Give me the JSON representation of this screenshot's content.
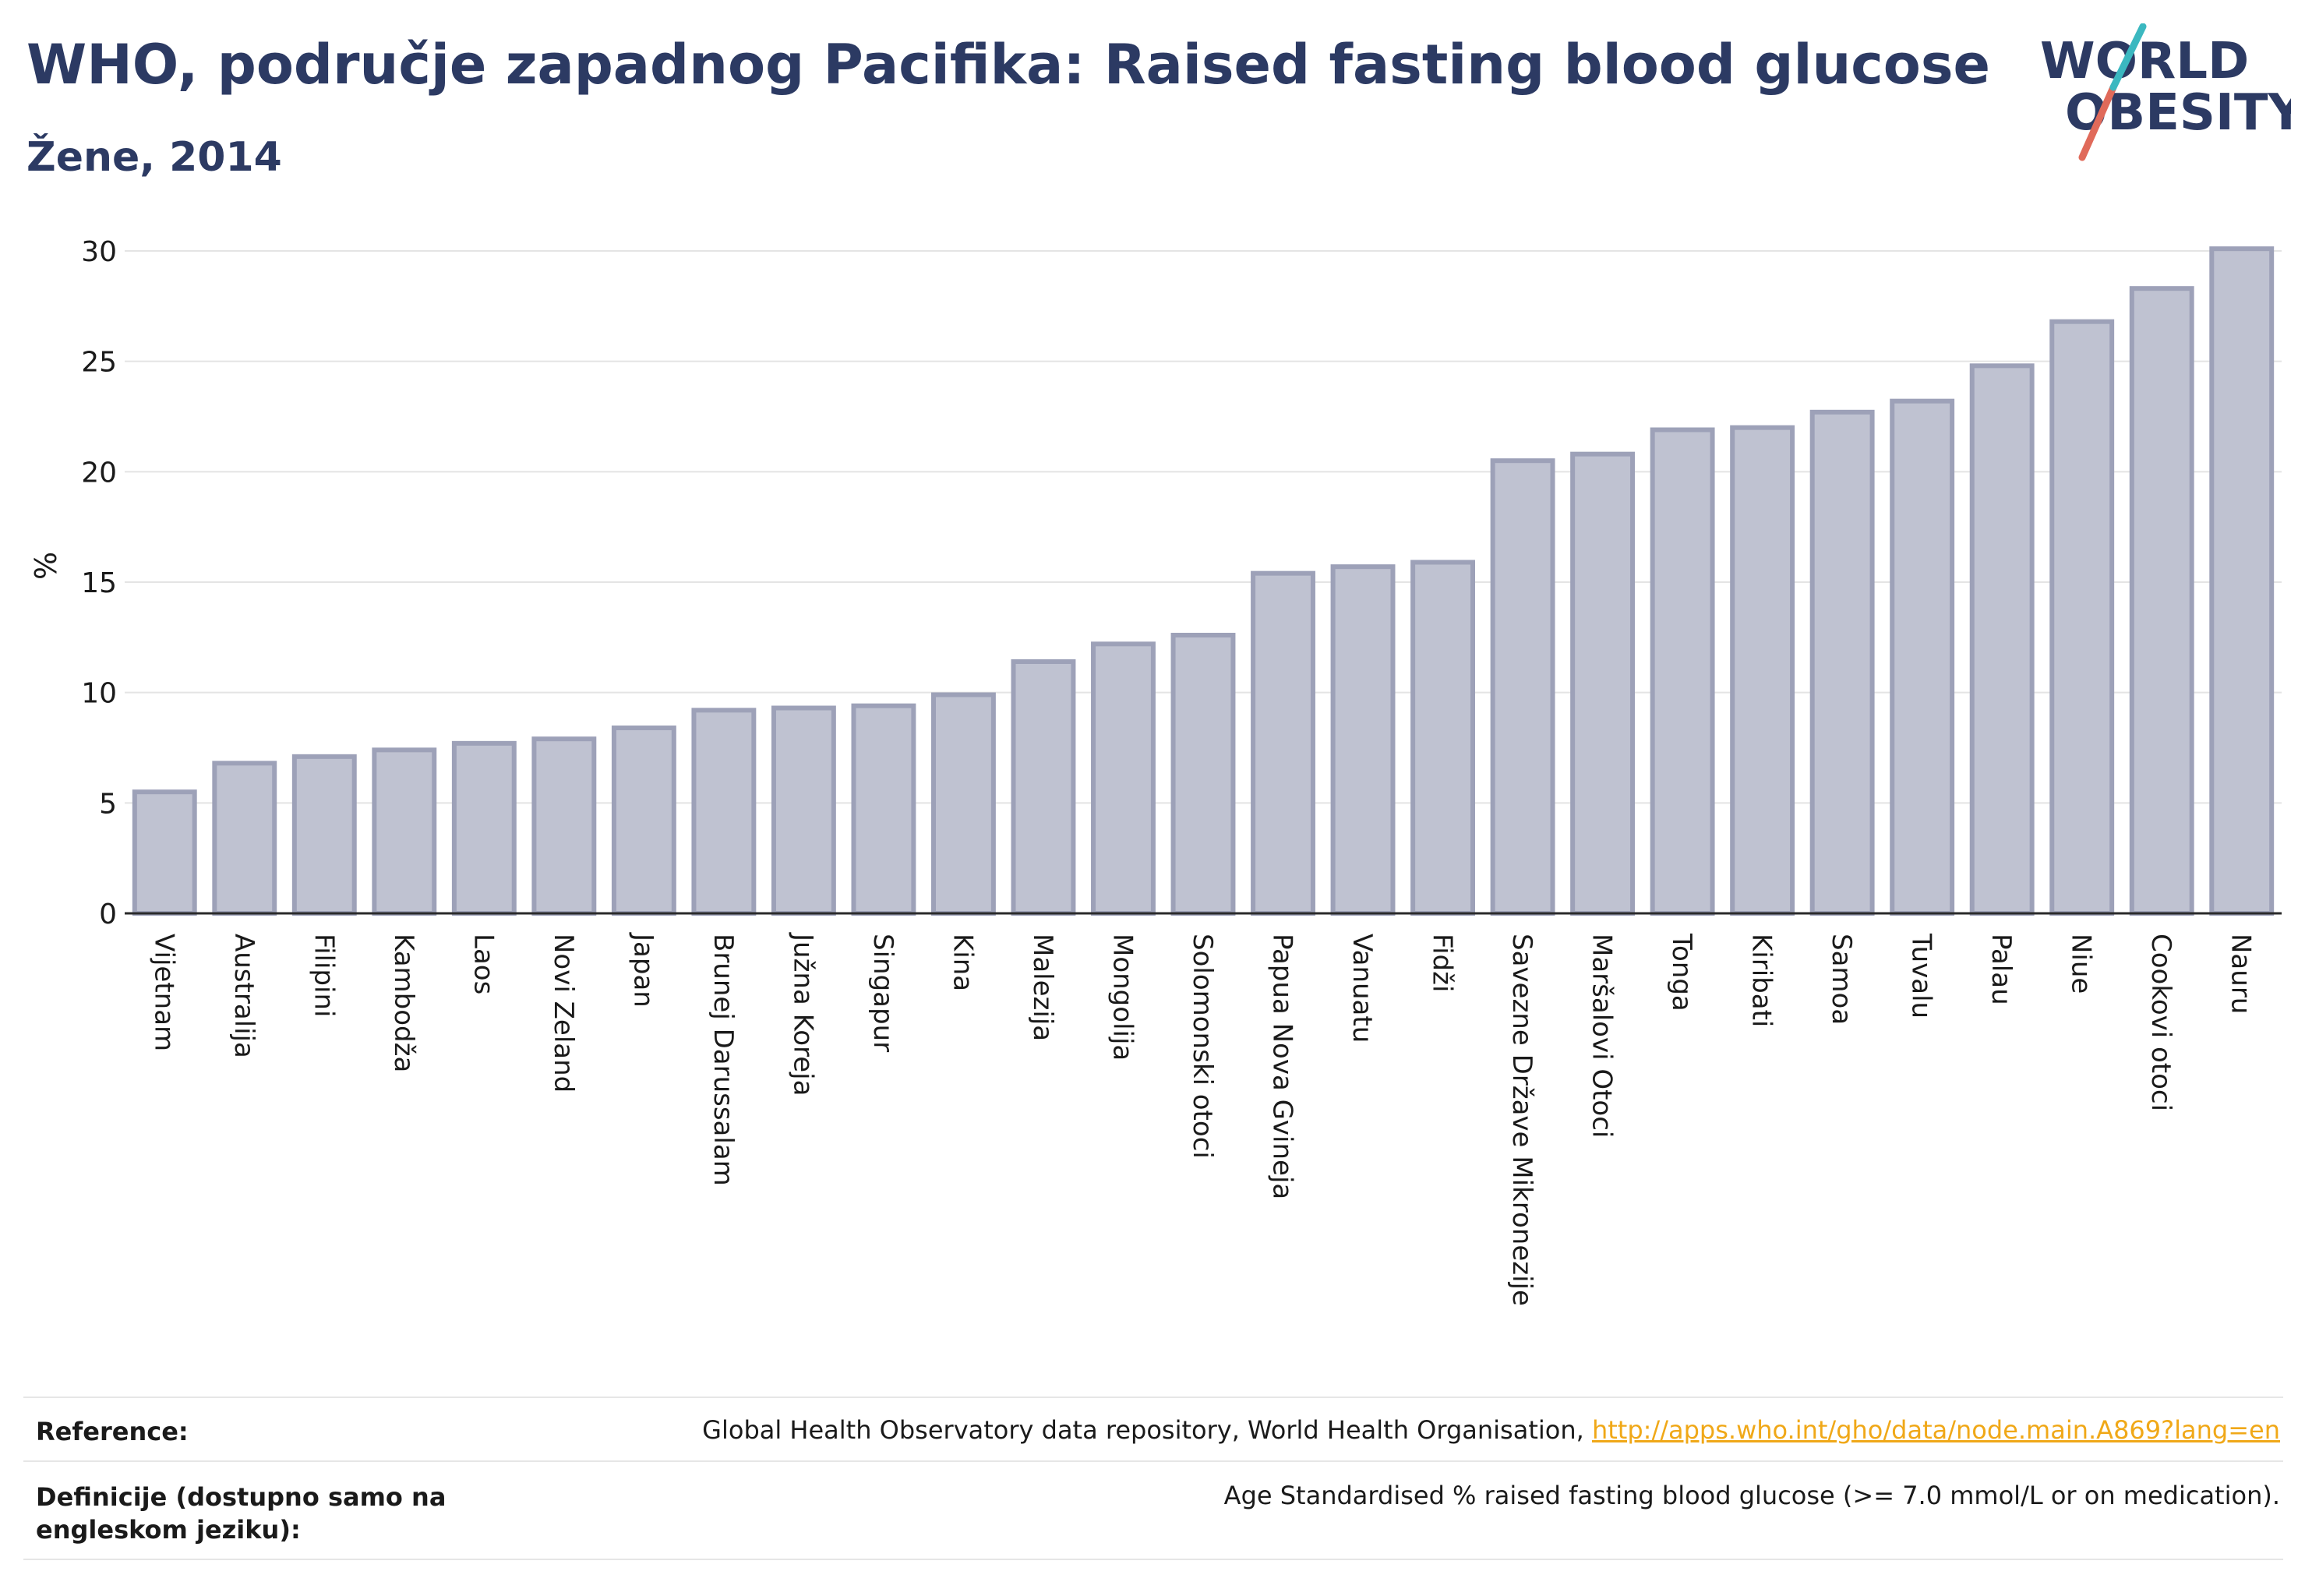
{
  "header": {
    "title": "WHO, područje zapadnog Pacifika: Raised fasting blood glucose",
    "subtitle": "Žene, 2014"
  },
  "logo": {
    "line1": "WORLD",
    "line2": "OBESITY"
  },
  "chart_data": {
    "type": "bar",
    "ylabel": "%",
    "ylim": [
      0,
      30
    ],
    "yticks": [
      0,
      5,
      10,
      15,
      20,
      25,
      30
    ],
    "grid": true,
    "bar_color": "#bfc2d1",
    "bar_border": "#9da1b8",
    "categories": [
      "Vijetnam",
      "Australija",
      "Filipini",
      "Kambodža",
      "Laos",
      "Novi Zeland",
      "Japan",
      "Brunej Darussalam",
      "Južna Koreja",
      "Singapur",
      "Kina",
      "Malezija",
      "Mongolija",
      "Solomonski otoci",
      "Papua Nova Gvineja",
      "Vanuatu",
      "Fidži",
      "Savezne Države Mikronezije",
      "Maršalovi Otoci",
      "Tonga",
      "Kiribati",
      "Samoa",
      "Tuvalu",
      "Palau",
      "Niue",
      "Cookovi otoci",
      "Nauru"
    ],
    "values": [
      5.5,
      6.8,
      7.1,
      7.4,
      7.7,
      7.9,
      8.4,
      9.2,
      9.3,
      9.4,
      9.9,
      11.4,
      12.2,
      12.6,
      15.4,
      15.7,
      15.9,
      20.5,
      20.8,
      21.9,
      22.0,
      22.7,
      23.2,
      24.8,
      26.8,
      28.3,
      30.1
    ]
  },
  "reference": {
    "label": "Reference:",
    "text": "Global Health Observatory data repository, World Health Organisation, ",
    "link": "http://apps.who.int/gho/data/node.main.A869?lang=en"
  },
  "definition": {
    "label": "Definicije (dostupno samo na engleskom jeziku):",
    "text": "Age Standardised % raised fasting blood glucose (>= 7.0 mmol/L or on medication)."
  }
}
